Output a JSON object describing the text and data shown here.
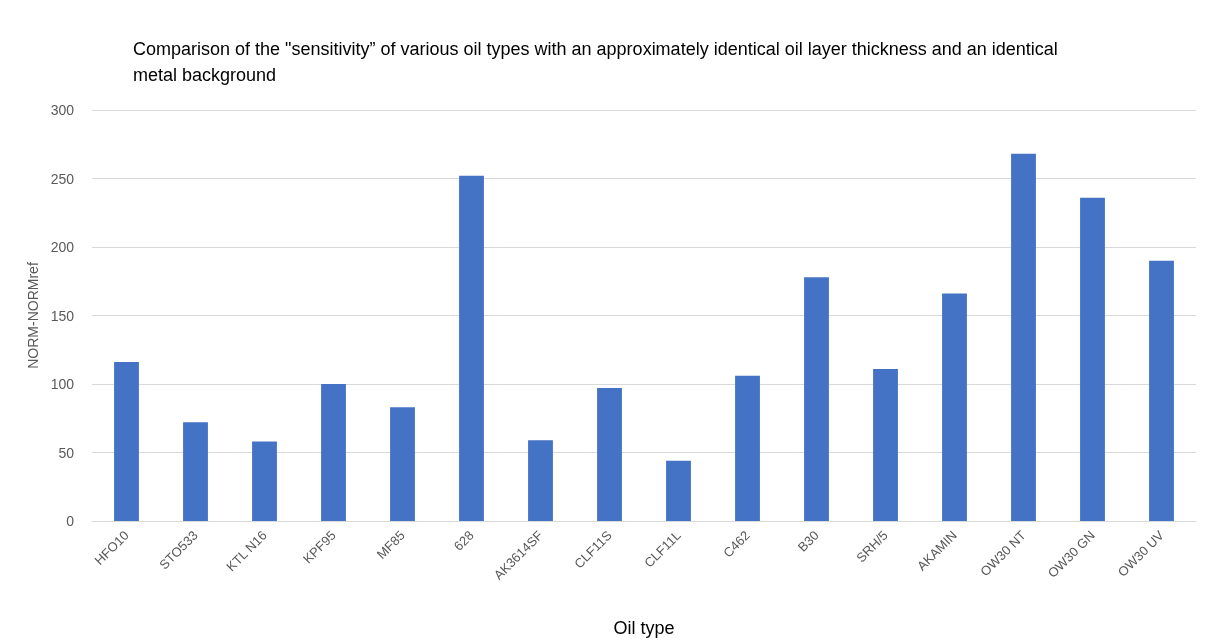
{
  "chart_data": {
    "type": "bar",
    "title": "Comparison of the \"sensitivity” of various oil types with an approximately identical oil layer thickness and an identical metal background",
    "xlabel": "Oil type",
    "ylabel": "NORM-NORMref",
    "categories": [
      "HFO10",
      "STO533",
      "KTL N16",
      "KPF95",
      "MF85",
      "628",
      "AK3614SF",
      "CLF11S",
      "CLF11L",
      "C462",
      "B30",
      "SRH/5",
      "AKAMIN",
      "OW30 NT",
      "OW30 GN",
      "OW30 UV"
    ],
    "values": [
      116,
      72,
      58,
      100,
      83,
      252,
      59,
      97,
      44,
      106,
      178,
      111,
      166,
      268,
      236,
      190
    ],
    "color": "#4472c4",
    "ylim": [
      0,
      300
    ],
    "yticks": [
      0,
      50,
      100,
      150,
      200,
      250,
      300
    ],
    "grid": "y"
  }
}
